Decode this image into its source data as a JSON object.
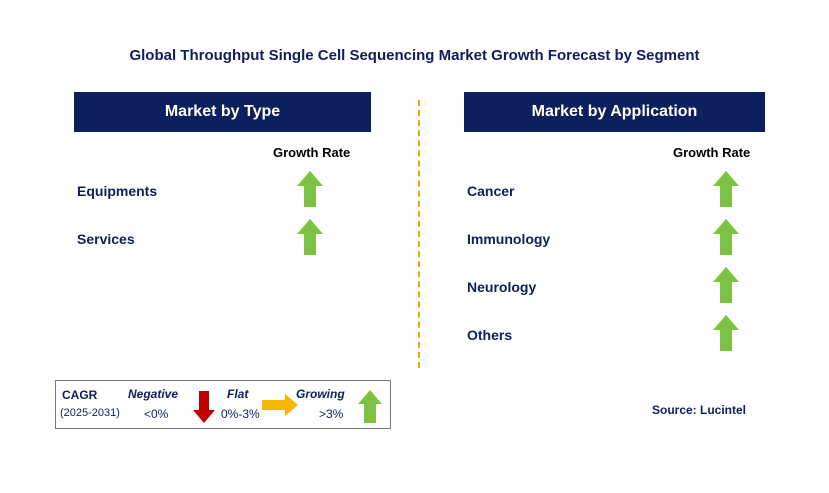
{
  "chart_data": {
    "type": "table",
    "title": "Global Throughput Single Cell Sequencing Market Growth Forecast by Segment",
    "panels": [
      {
        "header": "Market by Type",
        "column_label": "Growth Rate",
        "rows": [
          {
            "segment": "Equipments",
            "growth": "growing"
          },
          {
            "segment": "Services",
            "growth": "growing"
          }
        ]
      },
      {
        "header": "Market by Application",
        "column_label": "Growth Rate",
        "rows": [
          {
            "segment": "Cancer",
            "growth": "growing"
          },
          {
            "segment": "Immunology",
            "growth": "growing"
          },
          {
            "segment": "Neurology",
            "growth": "growing"
          },
          {
            "segment": "Others",
            "growth": "growing"
          }
        ]
      }
    ]
  },
  "legend": {
    "cagr": "CAGR",
    "period": "(2025-2031)",
    "negative_label": "Negative",
    "negative_range": "<0%",
    "flat_label": "Flat",
    "flat_range": "0%-3%",
    "growing_label": "Growing",
    "growing_range": ">3%"
  },
  "source": "Source: Lucintel",
  "colors": {
    "navy": "#0d1f5c",
    "growing_arrow": "#7dc242",
    "negative_arrow": "#c00000",
    "flat_arrow": "#f5b800",
    "divider": "#f0a500"
  }
}
